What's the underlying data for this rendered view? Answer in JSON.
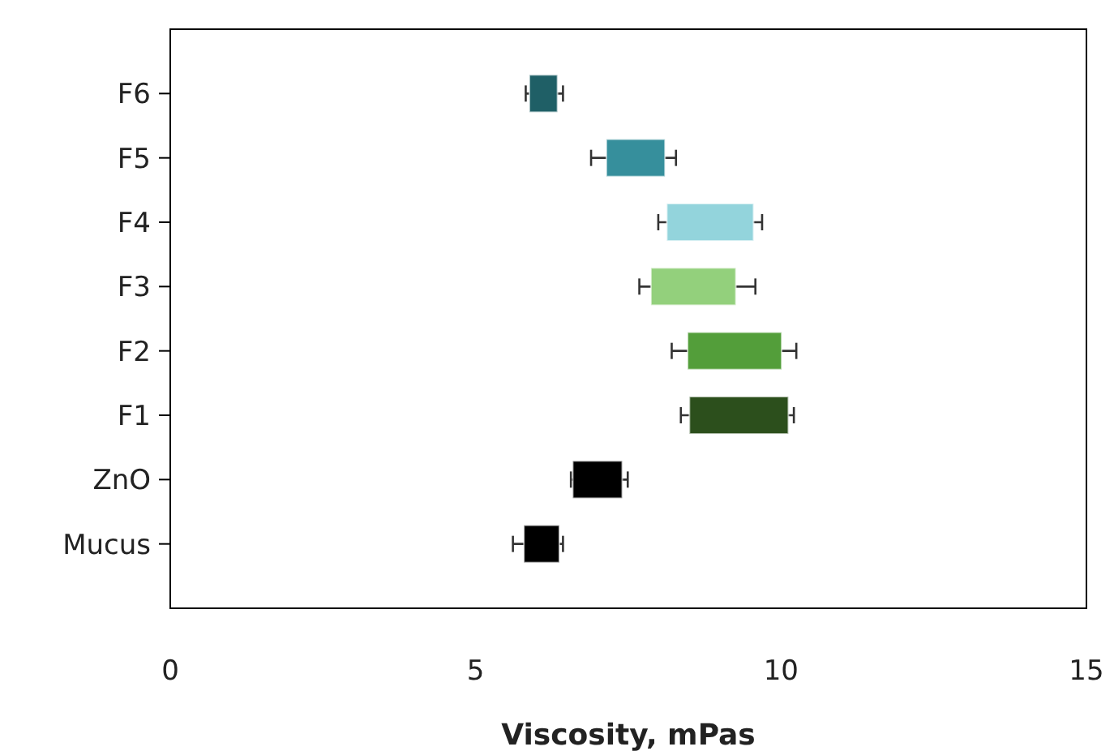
{
  "chart_data": {
    "type": "bar",
    "orientation": "horizontal",
    "xlabel": "Viscosity, mPas",
    "categories": [
      "F6",
      "F5",
      "F4",
      "F3",
      "F2",
      "F1",
      "ZnO",
      "Mucus"
    ],
    "base": [
      5.88,
      7.14,
      8.13,
      7.87,
      8.47,
      8.5,
      6.59,
      5.79
    ],
    "values": [
      0.46,
      0.96,
      1.42,
      1.39,
      1.54,
      1.62,
      0.81,
      0.58
    ],
    "errors": [
      [
        5.82,
        6.43
      ],
      [
        6.89,
        8.28
      ],
      [
        7.99,
        9.69
      ],
      [
        7.68,
        9.58
      ],
      [
        8.21,
        10.25
      ],
      [
        8.36,
        10.21
      ],
      [
        6.56,
        7.49
      ],
      [
        5.61,
        6.43
      ]
    ],
    "colors": [
      "#1f5f66",
      "#368f9c",
      "#93d4dc",
      "#93d07c",
      "#539e3a",
      "#2c4f1c",
      "#000000",
      "#000000"
    ],
    "xlim": [
      0,
      15
    ],
    "xticks": [
      0,
      5,
      10,
      15
    ],
    "grid": false
  }
}
